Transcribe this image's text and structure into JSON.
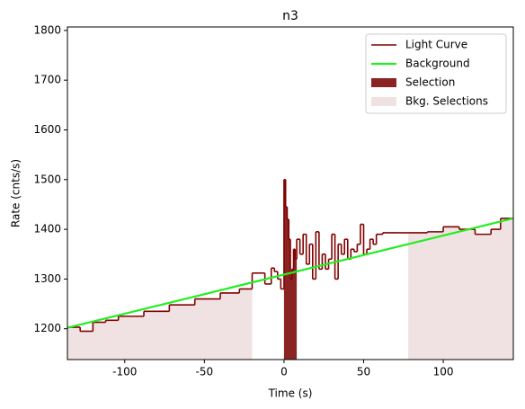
{
  "chart_data": {
    "type": "lightcurve",
    "title": "n3",
    "x_label": "Time (s)",
    "y_label": "Rate (cnts/s)",
    "xlim": [
      -136,
      144
    ],
    "ylim": [
      1138,
      1807
    ],
    "xticks": [
      -100,
      -50,
      0,
      50,
      100
    ],
    "yticks": [
      1200,
      1300,
      1400,
      1500,
      1600,
      1700,
      1800
    ],
    "legend": "upper right",
    "series": [
      {
        "name": "Light Curve",
        "color": "#800000",
        "bins": [
          -136,
          -128,
          -120,
          -112,
          -104,
          -88,
          -72,
          -56,
          -40,
          -28,
          -20,
          -12,
          -8,
          -6,
          -4,
          -2,
          0,
          1,
          2,
          3,
          4,
          5,
          6,
          7,
          8,
          10,
          12,
          14,
          16,
          18,
          20,
          22,
          24,
          26,
          28,
          30,
          32,
          34,
          36,
          38,
          40,
          42,
          44,
          46,
          48,
          50,
          52,
          54,
          56,
          58,
          62,
          72,
          78,
          90,
          100,
          110,
          120,
          130,
          136,
          144
        ],
        "values": [
          1203,
          1195,
          1213,
          1217,
          1225,
          1235,
          1248,
          1260,
          1272,
          1280,
          1312,
          1290,
          1322,
          1315,
          1300,
          1280,
          1500,
          1445,
          1420,
          1380,
          1300,
          1320,
          1360,
          1340,
          1380,
          1350,
          1390,
          1330,
          1370,
          1300,
          1395,
          1320,
          1350,
          1320,
          1340,
          1390,
          1300,
          1370,
          1350,
          1380,
          1340,
          1360,
          1355,
          1370,
          1410,
          1350,
          1360,
          1380,
          1370,
          1390,
          1393,
          1393,
          1393,
          1395,
          1405,
          1400,
          1390,
          1400,
          1422
        ]
      },
      {
        "name": "Background",
        "color": "#22ee22",
        "x": [
          -136,
          144
        ],
        "values": [
          1202,
          1422
        ]
      },
      {
        "name": "Selection",
        "color": "#8b2323",
        "ranges": [
          [
            0,
            8
          ]
        ]
      },
      {
        "name": "Bkg. Selections",
        "color": "#f0e2e2",
        "ranges": [
          [
            -136,
            -20
          ],
          [
            78,
            144
          ]
        ]
      }
    ]
  }
}
